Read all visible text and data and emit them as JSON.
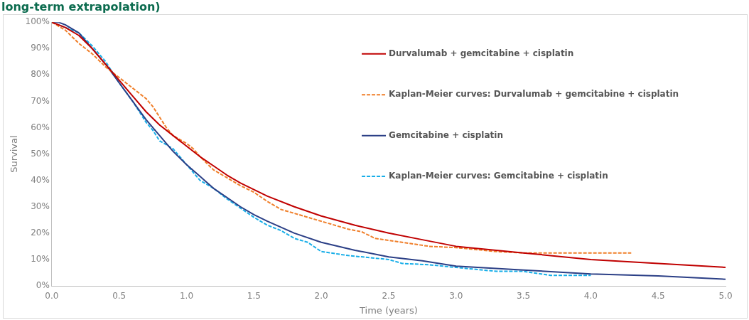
{
  "chart_data": {
    "type": "line",
    "title": "long-term extrapolation)",
    "xlabel": "Time (years)",
    "ylabel": "Survival",
    "xlim": [
      0,
      5
    ],
    "xticks": [
      {
        "value": 0,
        "label": "0.0"
      },
      {
        "value": 0.5,
        "label": "0.5"
      },
      {
        "value": 1,
        "label": "1.0"
      },
      {
        "value": 1.5,
        "label": "1.5"
      },
      {
        "value": 2,
        "label": "2.0"
      },
      {
        "value": 2.5,
        "label": "2.5"
      },
      {
        "value": 3,
        "label": "3.0"
      },
      {
        "value": 3.5,
        "label": "3.5"
      },
      {
        "value": 4,
        "label": "4.0"
      },
      {
        "value": 4.5,
        "label": "4.5"
      },
      {
        "value": 5,
        "label": "5.0"
      }
    ],
    "ylim": [
      0,
      100
    ],
    "yticks": [
      {
        "value": 0,
        "label": "0%"
      },
      {
        "value": 10,
        "label": "10%"
      },
      {
        "value": 20,
        "label": "20%"
      },
      {
        "value": 30,
        "label": "30%"
      },
      {
        "value": 40,
        "label": "40%"
      },
      {
        "value": 50,
        "label": "50%"
      },
      {
        "value": 60,
        "label": "60%"
      },
      {
        "value": 70,
        "label": "70%"
      },
      {
        "value": 80,
        "label": "80%"
      },
      {
        "value": 90,
        "label": "90%"
      },
      {
        "value": 100,
        "label": "100%"
      }
    ],
    "grid": false,
    "legend": "top right",
    "marker": "none",
    "series": [
      {
        "name": "Durvalumab + gemcitabine + cisplatin",
        "color": "#c00000",
        "line_style": "solid",
        "x": [
          0,
          0.1,
          0.2,
          0.3,
          0.4,
          0.5,
          0.6,
          0.7,
          0.8,
          0.9,
          1.0,
          1.1,
          1.2,
          1.3,
          1.4,
          1.5,
          1.6,
          1.8,
          2.0,
          2.25,
          2.5,
          2.75,
          3.0,
          3.5,
          4.0,
          4.5,
          5.0
        ],
        "values": [
          100,
          98,
          95,
          90,
          84,
          78,
          72,
          66,
          61,
          57,
          53,
          49,
          45.5,
          42,
          39,
          36.5,
          34,
          30,
          26.5,
          23,
          20,
          17.5,
          15,
          12.5,
          10,
          8.5,
          7
        ]
      },
      {
        "name": "Kaplan-Meier curves: Durvalumab + gemcitabine + cisplatin",
        "color": "#f07f2a",
        "line_style": "dashed",
        "x": [
          0,
          0.1,
          0.2,
          0.3,
          0.4,
          0.5,
          0.6,
          0.7,
          0.75,
          0.8,
          0.85,
          0.9,
          1.0,
          1.05,
          1.1,
          1.2,
          1.3,
          1.4,
          1.5,
          1.6,
          1.7,
          1.8,
          2.0,
          2.2,
          2.3,
          2.4,
          2.6,
          2.8,
          3.0,
          3.3,
          3.5,
          4.0,
          4.3
        ],
        "values": [
          100,
          97,
          92,
          88,
          83,
          79,
          75,
          71,
          68,
          64,
          60,
          57,
          54,
          52,
          49,
          44,
          41,
          38,
          35.5,
          32,
          29,
          27.5,
          24.5,
          21.5,
          20.5,
          18,
          16.5,
          15,
          14.5,
          13,
          12.5,
          12.5,
          12.5
        ]
      },
      {
        "name": "Gemcitabine + cisplatin",
        "color": "#2b3f86",
        "line_style": "solid",
        "x": [
          0,
          0.05,
          0.1,
          0.2,
          0.3,
          0.4,
          0.5,
          0.6,
          0.7,
          0.8,
          0.9,
          1.0,
          1.1,
          1.2,
          1.3,
          1.4,
          1.5,
          1.6,
          1.8,
          2.0,
          2.25,
          2.5,
          2.75,
          3.0,
          3.5,
          4.0,
          4.5,
          5.0
        ],
        "values": [
          100,
          100,
          99,
          96,
          90,
          84,
          77,
          70,
          63,
          57,
          51,
          46,
          41.5,
          37,
          33.5,
          30,
          27,
          24.5,
          20,
          16.5,
          13.5,
          11,
          9.5,
          7.5,
          6,
          4.5,
          3.8,
          2.5
        ]
      },
      {
        "name": "Kaplan-Meier curves: Gemcitabine + cisplatin",
        "color": "#18aee8",
        "line_style": "dashed",
        "x": [
          0,
          0.1,
          0.2,
          0.3,
          0.4,
          0.5,
          0.6,
          0.7,
          0.75,
          0.8,
          0.9,
          1.0,
          1.1,
          1.2,
          1.3,
          1.4,
          1.5,
          1.6,
          1.7,
          1.8,
          1.9,
          2.0,
          2.2,
          2.5,
          2.6,
          2.8,
          3.0,
          3.3,
          3.5,
          3.7,
          4.0
        ],
        "values": [
          100,
          98,
          96,
          91,
          85,
          77,
          70,
          62,
          59,
          55,
          52,
          46,
          40,
          37,
          33,
          29.5,
          26,
          23,
          21,
          18,
          16.5,
          13,
          11.5,
          10,
          8.5,
          8,
          7,
          5.5,
          5.5,
          4,
          4
        ]
      }
    ]
  }
}
